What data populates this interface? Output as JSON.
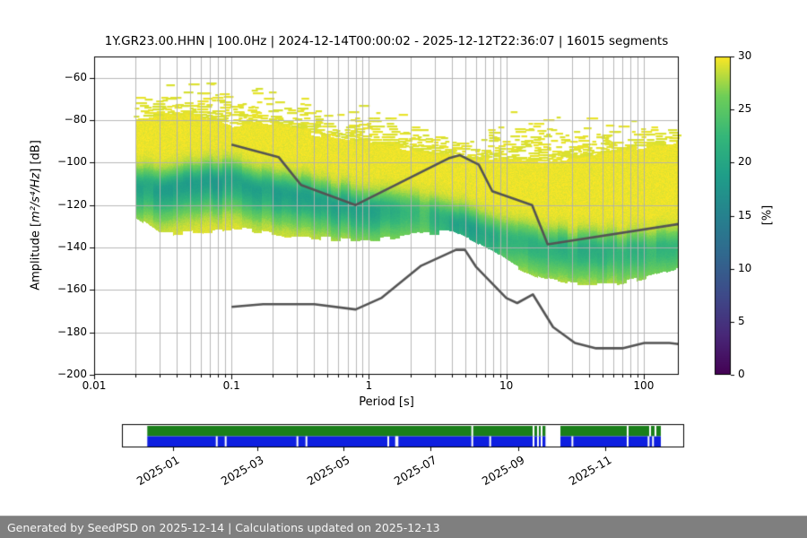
{
  "chart_data": {
    "type": "heatmap",
    "title": "1Y.GR23.00.HHN | 100.0Hz | 2024-12-14T00:00:02 - 2025-12-12T22:36:07 | 16015 segments",
    "xlabel": "Period [s]",
    "ylabel": "Amplitude [m²/s⁴/Hz] [dB]",
    "ylabel_parts": {
      "prefix": "Amplitude [",
      "math": "m²/s⁴/Hz",
      "suffix": "] [dB]"
    },
    "xscale": "log",
    "xlim": [
      0.01,
      180
    ],
    "ylim": [
      -200,
      -50
    ],
    "grid": true,
    "xticks": {
      "values": [
        0.01,
        0.1,
        1,
        10,
        100
      ],
      "labels": [
        "0.01",
        "0.1",
        "1",
        "10",
        "100"
      ]
    },
    "yticks": {
      "values": [
        -60,
        -80,
        -100,
        -120,
        -140,
        -160,
        -180,
        -200
      ],
      "labels": [
        "−60",
        "−80",
        "−100",
        "−120",
        "−140",
        "−160",
        "−180",
        "−200"
      ]
    },
    "colorbar": {
      "label": "[%]",
      "ticks": {
        "values": [
          0,
          5,
          10,
          15,
          20,
          25,
          30
        ],
        "labels": [
          "0",
          "5",
          "10",
          "15",
          "20",
          "25",
          "30"
        ]
      },
      "cmap": "viridis_reversed_low_is_yellow",
      "viridis_stops": [
        [
          0.0,
          "#440154"
        ],
        [
          0.125,
          "#482878"
        ],
        [
          0.25,
          "#3e4a89"
        ],
        [
          0.375,
          "#31688e"
        ],
        [
          0.5,
          "#26828e"
        ],
        [
          0.625,
          "#1f9e89"
        ],
        [
          0.75,
          "#35b779"
        ],
        [
          0.875,
          "#6ece58"
        ],
        [
          1.0,
          "#fde725"
        ]
      ]
    },
    "psd_cloud": {
      "comment": "PPSD probability cloud envelopes, dB vs period (s). max=top of speckled extent, solid=top of solid fill, bottom=lower extent, mode=center of high-probability green band, strength=band darkness 0..1",
      "periods": [
        0.02,
        0.03,
        0.045,
        0.07,
        0.1,
        0.16,
        0.25,
        0.4,
        0.65,
        1.0,
        1.6,
        2.5,
        4.0,
        5.5,
        8.0,
        12,
        18,
        30,
        60,
        100,
        180
      ],
      "max_db": [
        -64,
        -63,
        -60,
        -61,
        -66,
        -62,
        -67,
        -69,
        -71,
        -66,
        -74,
        -78,
        -80,
        -81,
        -79,
        -75,
        -73,
        -76,
        -80,
        -80,
        -82
      ],
      "solid_db": [
        -79,
        -77,
        -77,
        -79,
        -82,
        -80,
        -82,
        -86,
        -88,
        -90,
        -92,
        -95,
        -97,
        -98,
        -98,
        -98,
        -99,
        -97,
        -94,
        -92,
        -90
      ],
      "bottom_db": [
        -125.5,
        -133.5,
        -133,
        -132,
        -131,
        -132,
        -134,
        -135,
        -136,
        -136,
        -135,
        -133,
        -132,
        -136,
        -142,
        -149,
        -154,
        -157,
        -157,
        -154,
        -149
      ],
      "mode_db": [
        -110,
        -112,
        -110,
        -108,
        -109,
        -112,
        -114,
        -117,
        -120,
        -122,
        -123,
        -124,
        -128,
        -131,
        -134,
        -137,
        -139,
        -141,
        -142,
        -141,
        -139
      ],
      "band_strength": [
        0.8,
        0.8,
        0.85,
        0.9,
        0.85,
        0.8,
        0.8,
        0.8,
        0.85,
        0.8,
        0.6,
        0.5,
        0.75,
        0.85,
        0.7,
        0.6,
        0.6,
        0.65,
        0.6,
        0.6,
        0.55
      ]
    },
    "noise_models": {
      "color": "#545454",
      "nhnm": [
        [
          0.1,
          -91.5
        ],
        [
          0.22,
          -97.4
        ],
        [
          0.32,
          -110.5
        ],
        [
          0.8,
          -120.0
        ],
        [
          3.8,
          -98.0
        ],
        [
          4.6,
          -96.5
        ],
        [
          6.3,
          -101.0
        ],
        [
          7.9,
          -113.5
        ],
        [
          15.4,
          -120.0
        ],
        [
          20.0,
          -138.5
        ],
        [
          354.8,
          -126.0
        ]
      ],
      "nlnm": [
        [
          0.1,
          -168.0
        ],
        [
          0.17,
          -166.7
        ],
        [
          0.4,
          -166.7
        ],
        [
          0.8,
          -169.2
        ],
        [
          1.24,
          -163.7
        ],
        [
          2.4,
          -148.6
        ],
        [
          4.3,
          -141.1
        ],
        [
          5.0,
          -141.1
        ],
        [
          6.0,
          -149.0
        ],
        [
          10.0,
          -163.8
        ],
        [
          12.0,
          -166.2
        ],
        [
          15.6,
          -162.1
        ],
        [
          21.9,
          -177.5
        ],
        [
          31.6,
          -185.0
        ],
        [
          45.0,
          -187.5
        ],
        [
          70.0,
          -187.5
        ],
        [
          101.0,
          -185.0
        ],
        [
          154.0,
          -185.0
        ],
        [
          328.0,
          -187.5
        ]
      ]
    }
  },
  "timeline": {
    "type": "coverage",
    "tick_labels": [
      "2025-01",
      "2025-03",
      "2025-05",
      "2025-07",
      "2025-09",
      "2025-11"
    ],
    "tick_positions": [
      0.0914,
      0.2403,
      0.3944,
      0.5485,
      0.7051,
      0.8592
    ],
    "bar_start": 0.0451,
    "bar_end": 0.9585,
    "green_color": "#1a7f1a",
    "blue_color": "#0e1fe0",
    "gaps_green": [
      0.6231,
      0.7321,
      0.74,
      0.7464,
      0.8995,
      0.9394,
      0.9489
    ],
    "gaps_blue": [
      0.1686,
      0.1845,
      0.3121,
      0.3281,
      0.4737,
      0.4876,
      0.4901,
      0.6231,
      0.655,
      0.7321,
      0.74,
      0.7464,
      0.8012,
      0.8995,
      0.9367,
      0.9446
    ],
    "outage": {
      "from": 0.7533,
      "to": 0.7799
    }
  },
  "footer": {
    "text": "Generated by SeedPSD on 2025-12-14 | Calculations updated on 2025-12-13"
  }
}
